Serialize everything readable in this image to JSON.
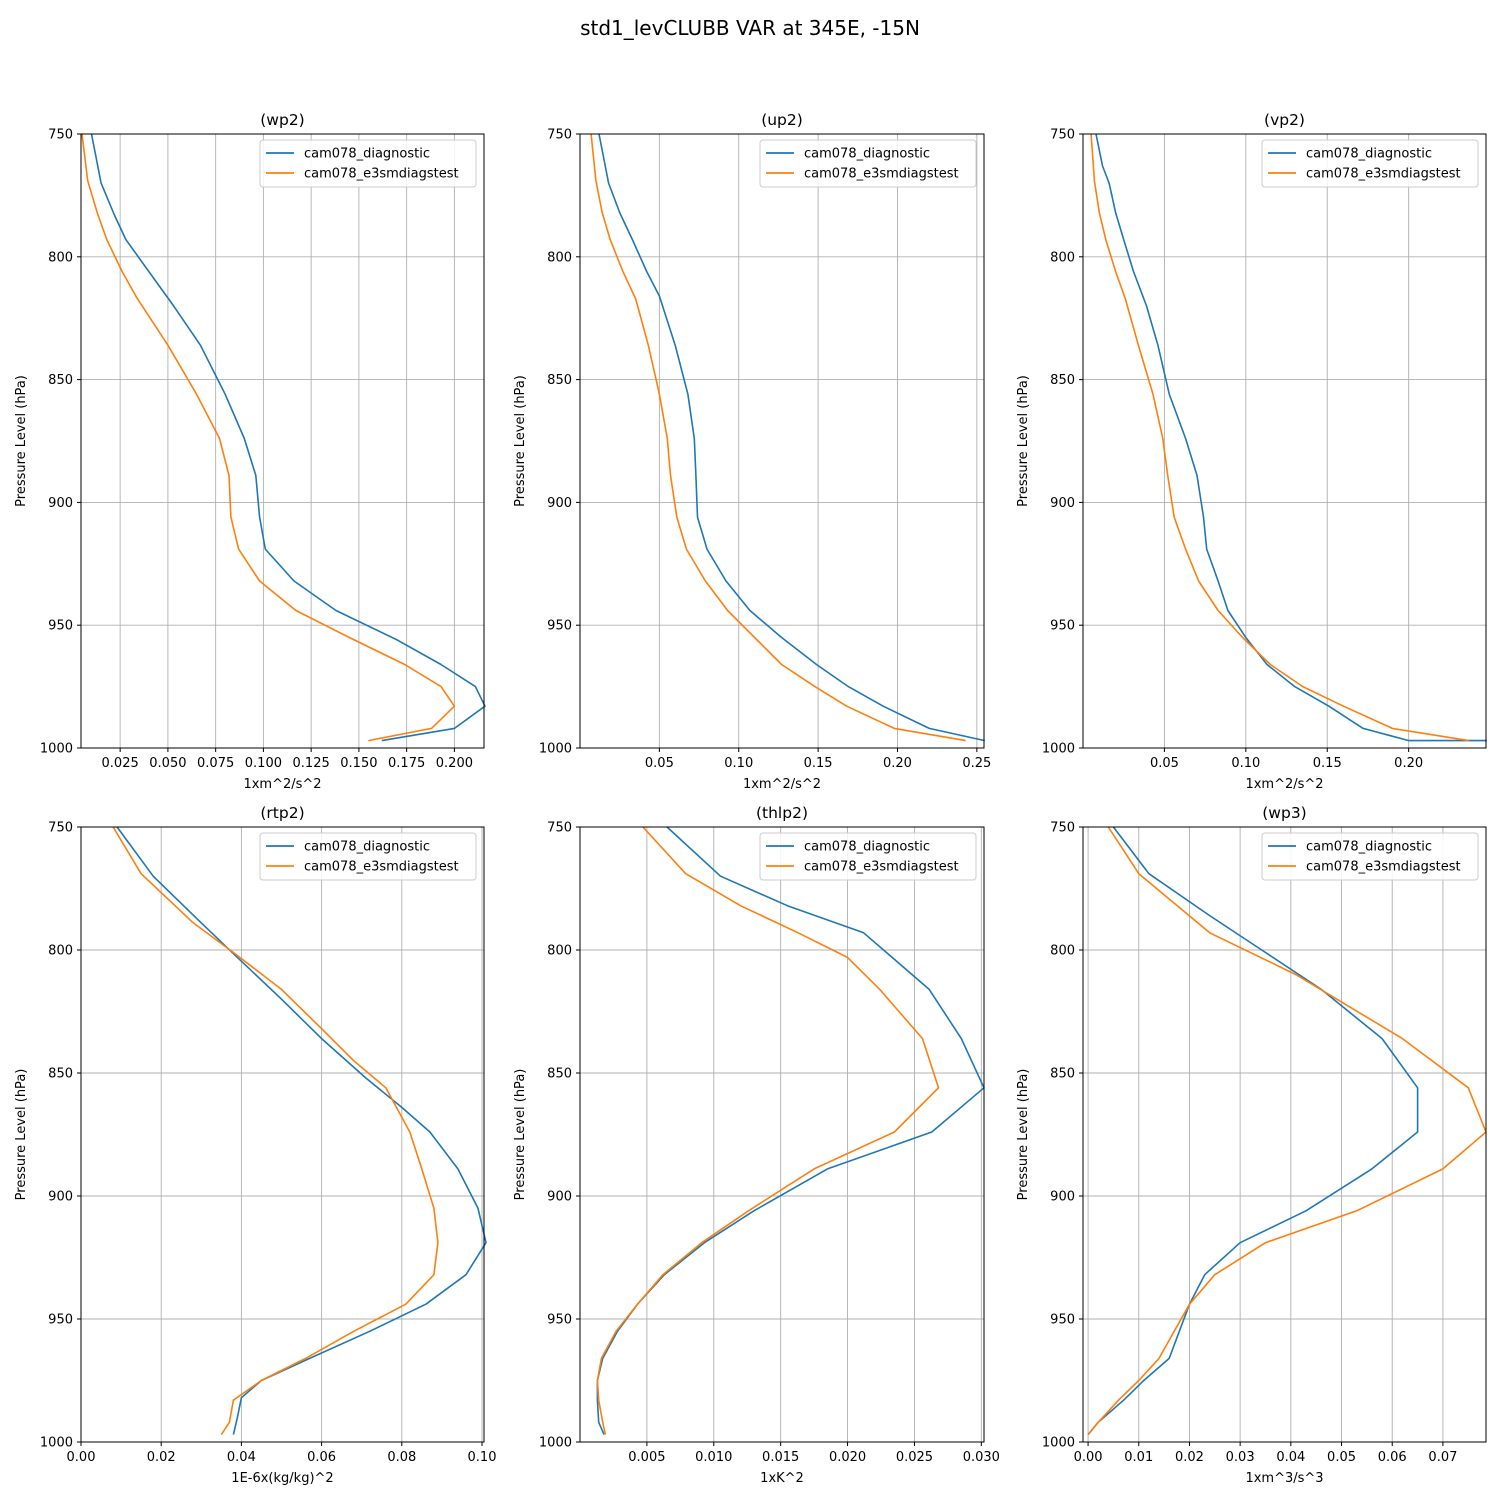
{
  "title": "std1_levCLUBB VAR at 345E, -15N",
  "colors": {
    "series1": "#1f77b4",
    "series2": "#ff7f0e",
    "grid": "#b0b0b0",
    "axis": "#000000"
  },
  "chart_data": [
    {
      "type": "line",
      "title": "(wp2)",
      "xlabel": "1xm^2/s^2",
      "ylabel": "Pressure Level (hPa)",
      "xlim": [
        0.0045,
        0.2155
      ],
      "ylim": [
        1000,
        750
      ],
      "xticks": [
        0.025,
        0.05,
        0.075,
        0.1,
        0.125,
        0.15,
        0.175,
        0.2
      ],
      "xtick_labels": [
        "0.025",
        "0.050",
        "0.075",
        "0.100",
        "0.125",
        "0.150",
        "0.175",
        "0.200"
      ],
      "yticks": [
        750,
        800,
        850,
        900,
        950,
        1000
      ],
      "ytick_labels": [
        "750",
        "800",
        "850",
        "900",
        "950",
        "1000"
      ],
      "grid": true,
      "legend_position": "top-right",
      "series": [
        {
          "name": "cam078_diagnostic",
          "x": [
            0.01,
            0.015,
            0.022,
            0.028,
            0.04,
            0.053,
            0.067,
            0.08,
            0.09,
            0.096,
            0.098,
            0.101,
            0.116,
            0.138,
            0.17,
            0.193,
            0.211,
            0.216,
            0.2,
            0.162
          ],
          "y": [
            750,
            770,
            783,
            793,
            806,
            820,
            836,
            856,
            874,
            889,
            906,
            919,
            932,
            944,
            956,
            966,
            975,
            983,
            992,
            997
          ]
        },
        {
          "name": "cam078_e3smdiagstest",
          "x": [
            0.005,
            0.008,
            0.013,
            0.018,
            0.026,
            0.034,
            0.05,
            0.065,
            0.077,
            0.082,
            0.083,
            0.087,
            0.098,
            0.117,
            0.145,
            0.174,
            0.193,
            0.2,
            0.188,
            0.155
          ],
          "y": [
            750,
            769,
            782,
            793,
            806,
            817,
            836,
            856,
            874,
            889,
            906,
            919,
            932,
            944,
            955,
            966,
            975,
            983,
            992,
            997
          ]
        }
      ]
    },
    {
      "type": "line",
      "title": "(up2)",
      "xlabel": "1xm^2/s^2",
      "ylabel": "Pressure Level (hPa)",
      "xlim": [
        0.0,
        0.2545
      ],
      "ylim": [
        1000,
        750
      ],
      "xticks": [
        0.05,
        0.1,
        0.15,
        0.2,
        0.25
      ],
      "xtick_labels": [
        "0.05",
        "0.10",
        "0.15",
        "0.20",
        "0.25"
      ],
      "yticks": [
        750,
        800,
        850,
        900,
        950,
        1000
      ],
      "ytick_labels": [
        "750",
        "800",
        "850",
        "900",
        "950",
        "1000"
      ],
      "grid": true,
      "legend_position": "top-right",
      "series": [
        {
          "name": "cam078_diagnostic",
          "x": [
            0.012,
            0.018,
            0.025,
            0.033,
            0.042,
            0.05,
            0.06,
            0.068,
            0.072,
            0.073,
            0.074,
            0.08,
            0.092,
            0.107,
            0.127,
            0.149,
            0.169,
            0.191,
            0.22,
            0.255
          ],
          "y": [
            750,
            770,
            782,
            793,
            806,
            816,
            836,
            856,
            874,
            889,
            906,
            919,
            932,
            944,
            955,
            966,
            975,
            983,
            992,
            997
          ]
        },
        {
          "name": "cam078_e3smdiagstest",
          "x": [
            0.007,
            0.01,
            0.014,
            0.019,
            0.027,
            0.035,
            0.043,
            0.05,
            0.055,
            0.057,
            0.061,
            0.067,
            0.079,
            0.093,
            0.11,
            0.127,
            0.148,
            0.168,
            0.198,
            0.243
          ],
          "y": [
            750,
            769,
            782,
            793,
            806,
            817,
            836,
            856,
            874,
            889,
            906,
            919,
            932,
            944,
            955,
            966,
            975,
            983,
            992,
            997
          ]
        }
      ]
    },
    {
      "type": "line",
      "title": "(vp2)",
      "xlabel": "1xm^2/s^2",
      "ylabel": "Pressure Level (hPa)",
      "xlim": [
        0.0,
        0.2475
      ],
      "ylim": [
        1000,
        750
      ],
      "xticks": [
        0.05,
        0.1,
        0.15,
        0.2
      ],
      "xtick_labels": [
        "0.05",
        "0.10",
        "0.15",
        "0.20"
      ],
      "yticks": [
        750,
        800,
        850,
        900,
        950,
        1000
      ],
      "ytick_labels": [
        "750",
        "800",
        "850",
        "900",
        "950",
        "1000"
      ],
      "grid": true,
      "legend_position": "top-right",
      "series": [
        {
          "name": "cam078_diagnostic",
          "x": [
            0.008,
            0.012,
            0.016,
            0.02,
            0.025,
            0.031,
            0.039,
            0.046,
            0.053,
            0.063,
            0.07,
            0.074,
            0.076,
            0.083,
            0.089,
            0.1,
            0.113,
            0.13,
            0.151,
            0.172,
            0.2,
            0.248
          ],
          "y": [
            750,
            763,
            770,
            782,
            793,
            806,
            820,
            836,
            856,
            874,
            889,
            906,
            919,
            932,
            944,
            955,
            966,
            975,
            983,
            992,
            997,
            997
          ]
        },
        {
          "name": "cam078_e3smdiagstest",
          "x": [
            0.005,
            0.007,
            0.01,
            0.014,
            0.02,
            0.026,
            0.034,
            0.043,
            0.049,
            0.052,
            0.056,
            0.063,
            0.071,
            0.083,
            0.098,
            0.115,
            0.135,
            0.16,
            0.19,
            0.237
          ],
          "y": [
            750,
            769,
            782,
            793,
            806,
            817,
            836,
            856,
            874,
            889,
            906,
            919,
            932,
            944,
            955,
            966,
            975,
            983,
            992,
            997
          ]
        }
      ]
    },
    {
      "type": "line",
      "title": "(rtp2)",
      "xlabel": "1E-6x(kg/kg)^2",
      "ylabel": "Pressure Level (hPa)",
      "xlim": [
        0.0,
        0.1005
      ],
      "ylim": [
        1000,
        750
      ],
      "xticks": [
        0.0,
        0.02,
        0.04,
        0.06,
        0.08,
        0.1
      ],
      "xtick_labels": [
        "0.00",
        "0.02",
        "0.04",
        "0.06",
        "0.08",
        "0.10"
      ],
      "yticks": [
        750,
        800,
        850,
        900,
        950,
        1000
      ],
      "ytick_labels": [
        "750",
        "800",
        "850",
        "900",
        "950",
        "1000"
      ],
      "grid": true,
      "legend_position": "top-right",
      "series": [
        {
          "name": "cam078_diagnostic",
          "x": [
            0.009,
            0.018,
            0.03,
            0.039,
            0.05,
            0.06,
            0.071,
            0.08,
            0.087,
            0.094,
            0.099,
            0.101,
            0.096,
            0.086,
            0.072,
            0.057,
            0.045,
            0.04,
            0.039,
            0.038
          ],
          "y": [
            750,
            770,
            789,
            803,
            820,
            836,
            852,
            864,
            874,
            889,
            905,
            919,
            932,
            944,
            955,
            966,
            975,
            982,
            990,
            997
          ]
        },
        {
          "name": "cam078_e3smdiagstest",
          "x": [
            0.008,
            0.015,
            0.028,
            0.038,
            0.05,
            0.06,
            0.068,
            0.076,
            0.082,
            0.085,
            0.088,
            0.089,
            0.088,
            0.081,
            0.068,
            0.056,
            0.045,
            0.038,
            0.037,
            0.035
          ],
          "y": [
            750,
            769,
            789,
            801,
            816,
            832,
            845,
            856,
            874,
            889,
            905,
            919,
            932,
            944,
            955,
            966,
            975,
            983,
            992,
            997
          ]
        }
      ]
    },
    {
      "type": "line",
      "title": "(thlp2)",
      "xlabel": "1xK^2",
      "ylabel": "Pressure Level (hPa)",
      "xlim": [
        0.0,
        0.0302
      ],
      "ylim": [
        1000,
        750
      ],
      "xticks": [
        0.005,
        0.01,
        0.015,
        0.02,
        0.025,
        0.03
      ],
      "xtick_labels": [
        "0.005",
        "0.010",
        "0.015",
        "0.020",
        "0.025",
        "0.030"
      ],
      "yticks": [
        750,
        800,
        850,
        900,
        950,
        1000
      ],
      "ytick_labels": [
        "750",
        "800",
        "850",
        "900",
        "950",
        "1000"
      ],
      "grid": true,
      "legend_position": "top-right",
      "series": [
        {
          "name": "cam078_diagnostic",
          "x": [
            0.0065,
            0.0105,
            0.0155,
            0.0212,
            0.0261,
            0.0285,
            0.0302,
            0.0263,
            0.0185,
            0.013,
            0.0093,
            0.0063,
            0.0043,
            0.0028,
            0.0017,
            0.0013,
            0.0013,
            0.0014,
            0.0018
          ],
          "y": [
            750,
            770,
            782,
            793,
            816,
            836,
            856,
            874,
            889,
            906,
            919,
            932,
            944,
            955,
            966,
            975,
            983,
            992,
            997
          ]
        },
        {
          "name": "cam078_e3smdiagstest",
          "x": [
            0.0047,
            0.0079,
            0.012,
            0.0163,
            0.02,
            0.0224,
            0.0256,
            0.0268,
            0.0235,
            0.0175,
            0.0126,
            0.0091,
            0.0062,
            0.0043,
            0.0027,
            0.0016,
            0.0013,
            0.0014,
            0.0017,
            0.0019
          ],
          "y": [
            750,
            769,
            782,
            793,
            803,
            816,
            836,
            856,
            874,
            889,
            906,
            919,
            932,
            944,
            955,
            966,
            975,
            983,
            992,
            997
          ]
        }
      ]
    },
    {
      "type": "line",
      "title": "(wp3)",
      "xlabel": "1xm^3/s^3",
      "ylabel": "Pressure Level (hPa)",
      "xlim": [
        -0.001,
        0.0785
      ],
      "ylim": [
        1000,
        750
      ],
      "xticks": [
        0.0,
        0.01,
        0.02,
        0.03,
        0.04,
        0.05,
        0.06,
        0.07
      ],
      "xtick_labels": [
        "0.00",
        "0.01",
        "0.02",
        "0.03",
        "0.04",
        "0.05",
        "0.06",
        "0.07"
      ],
      "yticks": [
        750,
        800,
        850,
        900,
        950,
        1000
      ],
      "ytick_labels": [
        "750",
        "800",
        "850",
        "900",
        "950",
        "1000"
      ],
      "grid": true,
      "legend_position": "top-right",
      "series": [
        {
          "name": "cam078_diagnostic",
          "x": [
            0.005,
            0.012,
            0.024,
            0.035,
            0.046,
            0.058,
            0.065,
            0.065,
            0.056,
            0.043,
            0.03,
            0.023,
            0.02,
            0.018,
            0.016,
            0.011,
            0.007,
            0.002,
            0.0
          ],
          "y": [
            750,
            769,
            786,
            801,
            816,
            836,
            856,
            874,
            889,
            906,
            919,
            932,
            944,
            955,
            966,
            975,
            983,
            992,
            997
          ]
        },
        {
          "name": "cam078_e3smdiagstest",
          "x": [
            0.004,
            0.01,
            0.024,
            0.041,
            0.062,
            0.075,
            0.0785,
            0.07,
            0.053,
            0.035,
            0.025,
            0.02,
            0.017,
            0.014,
            0.01,
            0.006,
            0.002,
            0.0
          ],
          "y": [
            750,
            769,
            793,
            810,
            836,
            856,
            874,
            889,
            906,
            919,
            932,
            944,
            955,
            966,
            975,
            983,
            992,
            997
          ]
        }
      ]
    }
  ]
}
